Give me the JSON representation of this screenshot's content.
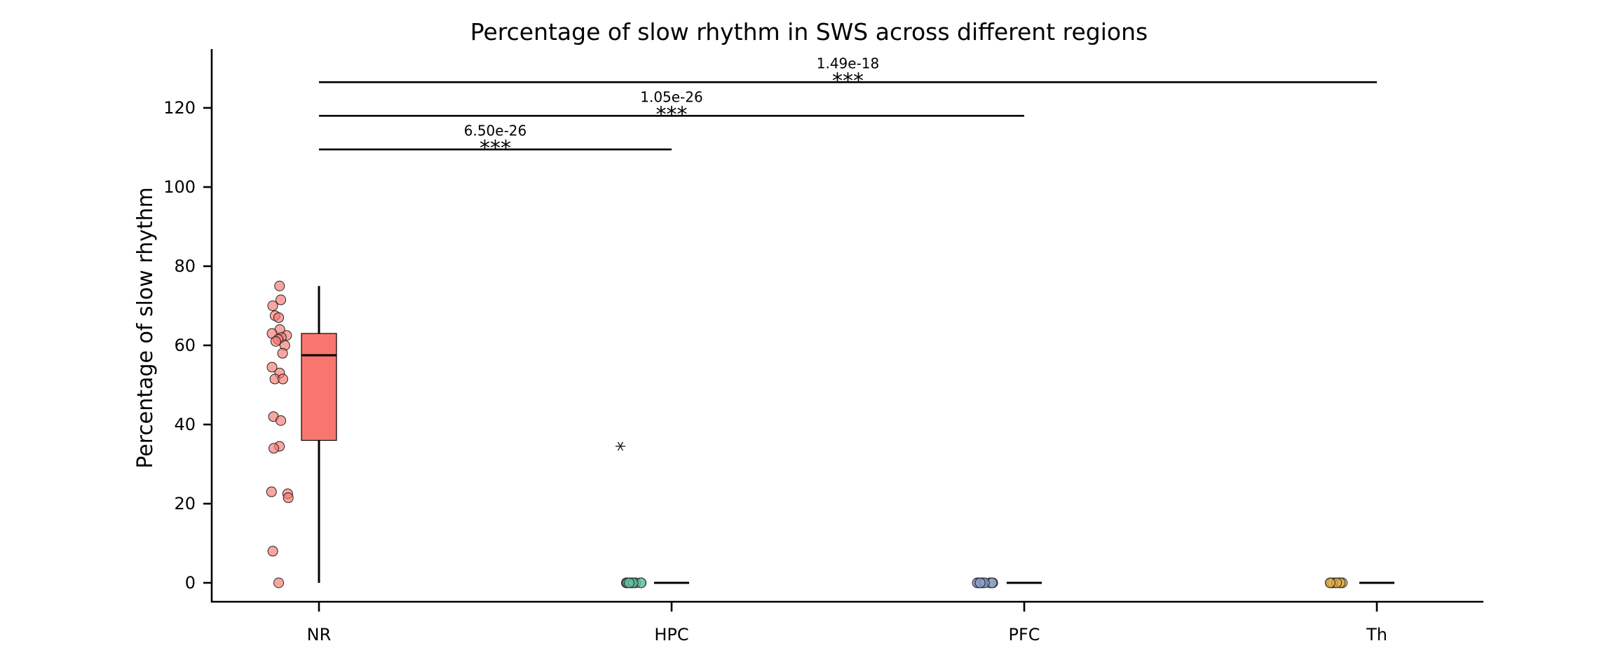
{
  "chart_data": {
    "type": "box",
    "title": "Percentage of slow rhythm in SWS across different regions",
    "xlabel": "",
    "ylabel": "Percentage of slow rhythm",
    "ylim": [
      -5,
      135
    ],
    "yticks": [
      0,
      20,
      40,
      60,
      80,
      100,
      120
    ],
    "grid": false,
    "legend": "none",
    "categories": [
      "NR",
      "HPC",
      "PFC",
      "Th"
    ],
    "series": [
      {
        "category": "NR",
        "color": "#F8766D",
        "box": {
          "q1": 36,
          "median": 57.5,
          "q3": 63,
          "whisker_low": 0,
          "whisker_high": 75
        },
        "outliers": [],
        "points": [
          75,
          71.5,
          70,
          67.5,
          67,
          64,
          63,
          62.5,
          62,
          61.5,
          61,
          60,
          58,
          54.5,
          53,
          51.5,
          51.5,
          42,
          41,
          34.5,
          34,
          23,
          22.5,
          21.5,
          8,
          0
        ]
      },
      {
        "category": "HPC",
        "color": "#66C2A5",
        "box": {
          "q1": 0,
          "median": 0,
          "q3": 0,
          "whisker_low": 0,
          "whisker_high": 0
        },
        "outliers": [
          34.5
        ],
        "points": [
          0,
          0,
          0,
          0,
          0,
          0,
          0,
          0,
          0,
          0,
          0,
          0
        ]
      },
      {
        "category": "PFC",
        "color": "#8DA0CB",
        "box": {
          "q1": 0,
          "median": 0,
          "q3": 0,
          "whisker_low": 0,
          "whisker_high": 0
        },
        "outliers": [],
        "points": [
          0,
          0,
          0,
          0,
          0,
          0,
          0,
          0,
          0,
          0
        ]
      },
      {
        "category": "Th",
        "color": "#E5B04A",
        "box": {
          "q1": 0,
          "median": 0,
          "q3": 0,
          "whisker_low": 0,
          "whisker_high": 0
        },
        "outliers": [],
        "points": [
          0,
          0,
          0,
          0,
          0,
          0,
          0,
          0
        ]
      }
    ],
    "significance": [
      {
        "from": "NR",
        "to": "HPC",
        "y": 109.5,
        "p_label": "6.50e-26",
        "stars": "***"
      },
      {
        "from": "NR",
        "to": "PFC",
        "y": 118,
        "p_label": "1.05e-26",
        "stars": "***"
      },
      {
        "from": "NR",
        "to": "Th",
        "y": 126.5,
        "p_label": "1.49e-18",
        "stars": "***"
      }
    ]
  }
}
